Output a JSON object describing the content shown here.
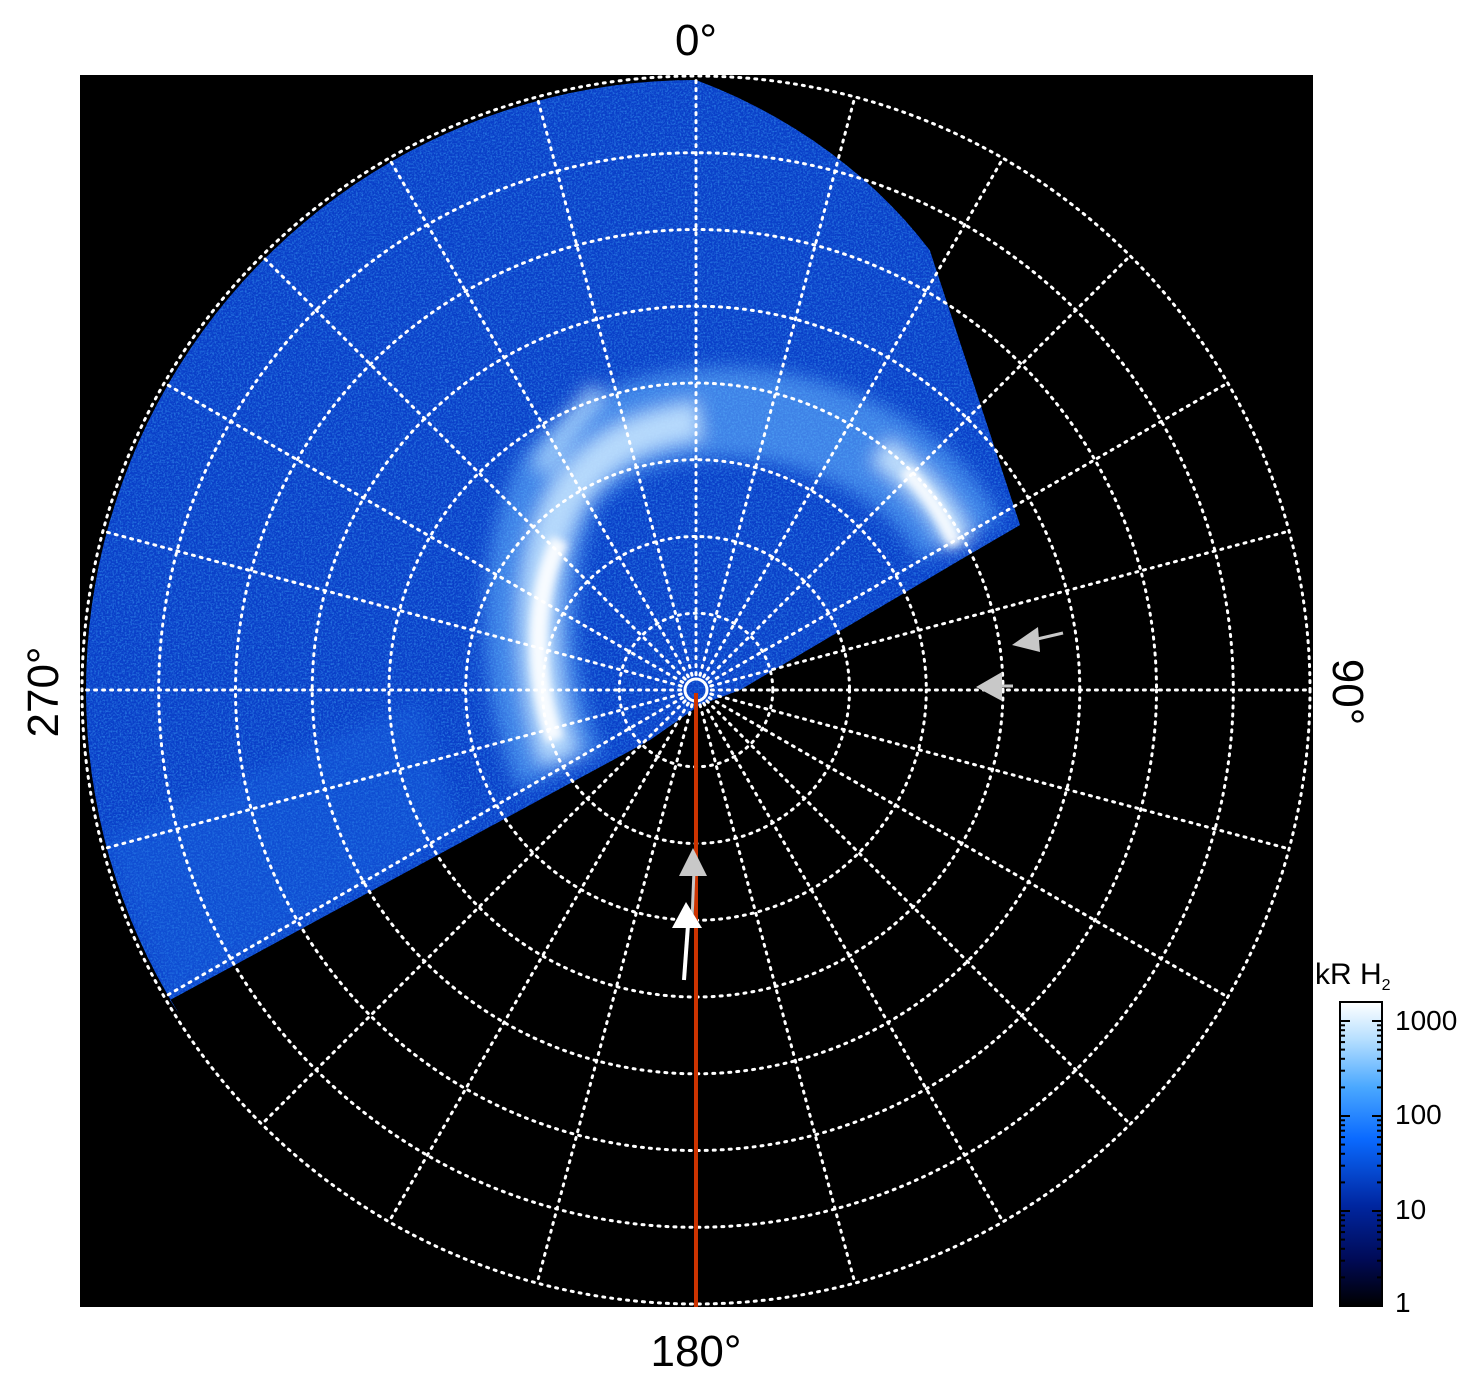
{
  "figure": {
    "angle_labels": {
      "top": "0°",
      "right": "90°",
      "bottom": "180°",
      "left": "270°"
    },
    "colorbar": {
      "title": "kR H",
      "title_subscript": "2",
      "ticks": [
        "1",
        "10",
        "100",
        "1000"
      ],
      "scale": "log",
      "colors": [
        "#000000",
        "#000a55",
        "#0033bb",
        "#0a6aff",
        "#4aa8ff",
        "#b8e0ff",
        "#ffffff"
      ]
    },
    "grid": {
      "rings": 8,
      "meridians": 24,
      "line_color": "#ffffff",
      "style": "dotted"
    },
    "colors": {
      "background": "#000000",
      "red_line": "#cc3300",
      "arrow_gray": "#c8c8c8",
      "arrow_white": "#ffffff"
    },
    "markers": [
      {
        "name": "gray-arrow-upper",
        "color": "gray"
      },
      {
        "name": "gray-arrow-lower",
        "color": "gray"
      },
      {
        "name": "gray-arrow-meridian",
        "color": "gray"
      },
      {
        "name": "white-arrow-meridian",
        "color": "white"
      }
    ]
  }
}
